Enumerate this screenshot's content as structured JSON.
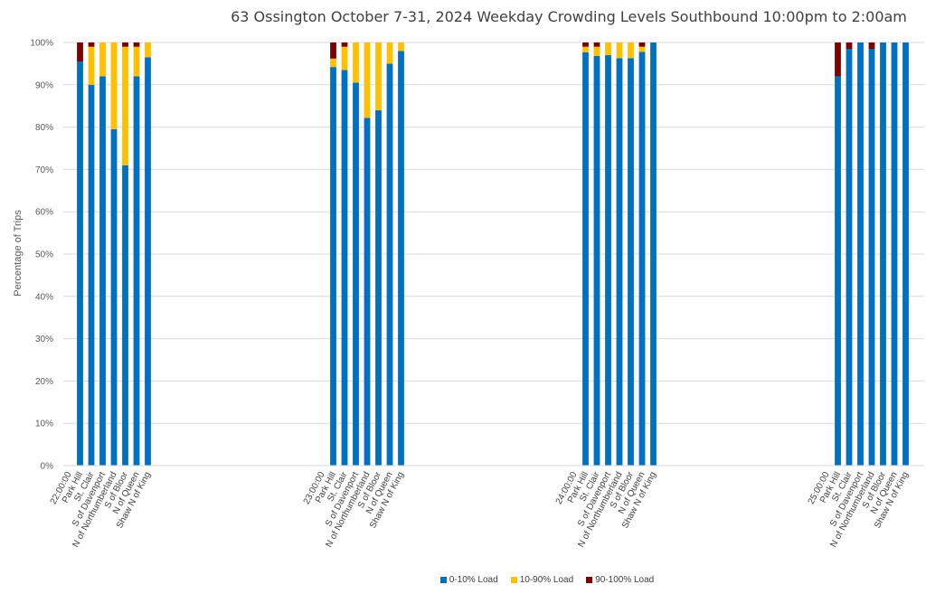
{
  "chart_data": {
    "type": "bar",
    "stacked": true,
    "title": "63 Ossington October 7-31, 2024  Weekday Crowding Levels Southbound 10:00pm to 2:00am",
    "ylabel": "Percentage of Trips",
    "xlabel": "",
    "ylim": [
      0,
      100
    ],
    "y_ticks": [
      "0%",
      "10%",
      "20%",
      "30%",
      "40%",
      "50%",
      "60%",
      "70%",
      "80%",
      "90%",
      "100%"
    ],
    "grid": true,
    "legend_position": "bottom",
    "groups": [
      {
        "label": "22:00:00",
        "categories": [
          "Park Hill",
          "St. Clair",
          "S of Davenport",
          "N of Northumberland",
          "S of Bloor",
          "N of Queen",
          "Shaw N of King"
        ],
        "series_values": {
          "0-10% Load": [
            95.5,
            90,
            92,
            79.5,
            71,
            92,
            96.5
          ],
          "10-90% Load": [
            0,
            9,
            8,
            20.5,
            28,
            7,
            3.5
          ],
          "90-100% Load": [
            4.5,
            1,
            0,
            0,
            1,
            1,
            0
          ]
        }
      },
      {
        "label": "23:00:00",
        "categories": [
          "Park Hill",
          "St. Clair",
          "S of Davenport",
          "N of Northumberland",
          "S of Bloor",
          "N of Queen",
          "Shaw N of King"
        ],
        "series_values": {
          "0-10% Load": [
            94.2,
            93.5,
            90.5,
            82.2,
            84,
            95,
            98
          ],
          "10-90% Load": [
            2,
            5.5,
            9.5,
            17.8,
            16,
            5,
            2
          ],
          "90-100% Load": [
            3.8,
            1,
            0,
            0,
            0,
            0,
            0
          ]
        }
      },
      {
        "label": "24:00:00",
        "categories": [
          "Park Hill",
          "St. Clair",
          "S of Davenport",
          "N of Northumberland",
          "S of Bloor",
          "N of Queen",
          "Shaw N of King"
        ],
        "series_values": {
          "0-10% Load": [
            97.7,
            96.8,
            97,
            96.3,
            96.3,
            97.8,
            100
          ],
          "10-90% Load": [
            1.3,
            2.2,
            3,
            3.7,
            3.7,
            1.2,
            0
          ],
          "90-100% Load": [
            1,
            1,
            0,
            0,
            0,
            1,
            0
          ]
        }
      },
      {
        "label": "25:00:00",
        "categories": [
          "Park Hill",
          "St. Clair",
          "S of Davenport",
          "N of Northumberland",
          "S of Bloor",
          "N of Queen",
          "Shaw N of King"
        ],
        "series_values": {
          "0-10% Load": [
            92,
            98.5,
            100,
            98.5,
            100,
            100,
            100
          ],
          "10-90% Load": [
            0,
            0,
            0,
            0,
            0,
            0,
            0
          ],
          "90-100% Load": [
            8,
            1.5,
            0,
            1.5,
            0,
            0,
            0
          ]
        }
      }
    ],
    "series": [
      {
        "name": "0-10% Load",
        "color": "#0070C0"
      },
      {
        "name": "10-90% Load",
        "color": "#FFC000"
      },
      {
        "name": "90-100% Load",
        "color": "#7F0000"
      }
    ]
  }
}
